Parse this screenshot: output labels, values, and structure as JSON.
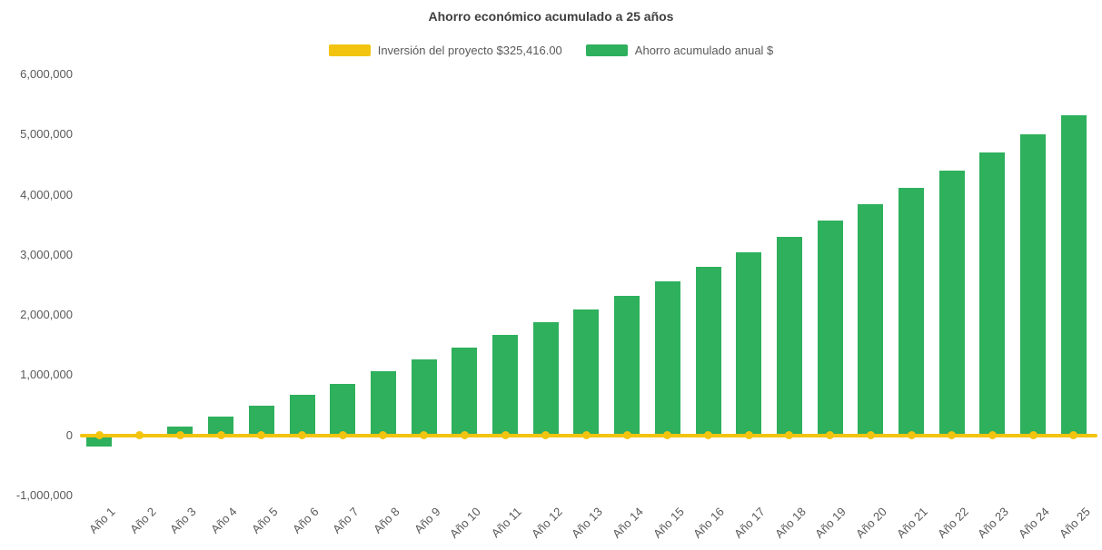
{
  "chart_data": {
    "type": "bar",
    "title": "Ahorro económico acumulado a 25 años",
    "categories": [
      "Año 1",
      "Año 2",
      "Año 3",
      "Año 4",
      "Año 5",
      "Año 6",
      "Año 7",
      "Año 8",
      "Año 9",
      "Año 10",
      "Año 11",
      "Año 12",
      "Año 13",
      "Año 14",
      "Año 15",
      "Año 16",
      "Año 17",
      "Año 18",
      "Año 19",
      "Año 20",
      "Año 21",
      "Año 22",
      "Año 23",
      "Año 24",
      "Año 25"
    ],
    "series": [
      {
        "name": "Inversión del proyecto $325,416.00",
        "type": "line",
        "color": "#F2C40F",
        "marker": "circle",
        "value": 0
      },
      {
        "name": "Ahorro acumulado anual $",
        "type": "bar",
        "color": "#2EB05C",
        "values": [
          -190000,
          -30000,
          140000,
          320000,
          490000,
          670000,
          860000,
          1060000,
          1260000,
          1460000,
          1670000,
          1880000,
          2100000,
          2320000,
          2560000,
          2800000,
          3050000,
          3300000,
          3570000,
          3850000,
          4120000,
          4400000,
          4700000,
          5000000,
          5320000
        ]
      }
    ],
    "ylim": [
      -1000000,
      6000000
    ],
    "yticks": {
      "values": [
        6000000,
        5000000,
        4000000,
        3000000,
        2000000,
        1000000,
        0,
        -1000000
      ],
      "labels": [
        "6,000,000",
        "5,000,000",
        "4,000,000",
        "3,000,000",
        "2,000,000",
        "1,000,000",
        "0",
        "-1,000,000"
      ]
    },
    "grid": false,
    "legend_position": "top",
    "title_color": "#3f3f3f",
    "text_color": "#595959",
    "background": "#ffffff"
  }
}
